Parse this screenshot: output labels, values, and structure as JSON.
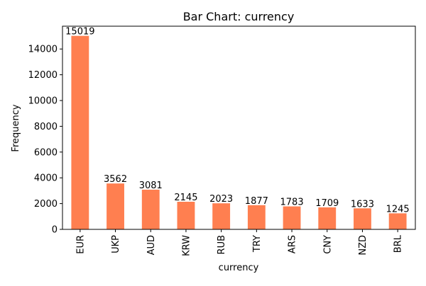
{
  "chart_data": {
    "type": "bar",
    "title": "Bar Chart: currency",
    "xlabel": "currency",
    "ylabel": "Frequency",
    "categories": [
      "EUR",
      "UKP",
      "AUD",
      "KRW",
      "RUB",
      "TRY",
      "ARS",
      "CNY",
      "NZD",
      "BRL"
    ],
    "values": [
      15019,
      3562,
      3081,
      2145,
      2023,
      1877,
      1783,
      1709,
      1633,
      1245
    ],
    "ylim": [
      0,
      15770
    ],
    "yticks": [
      0,
      2000,
      4000,
      6000,
      8000,
      10000,
      12000,
      14000
    ],
    "bar_color": "#ff7f50",
    "grid": false,
    "legend": "none",
    "data_labels": true
  }
}
